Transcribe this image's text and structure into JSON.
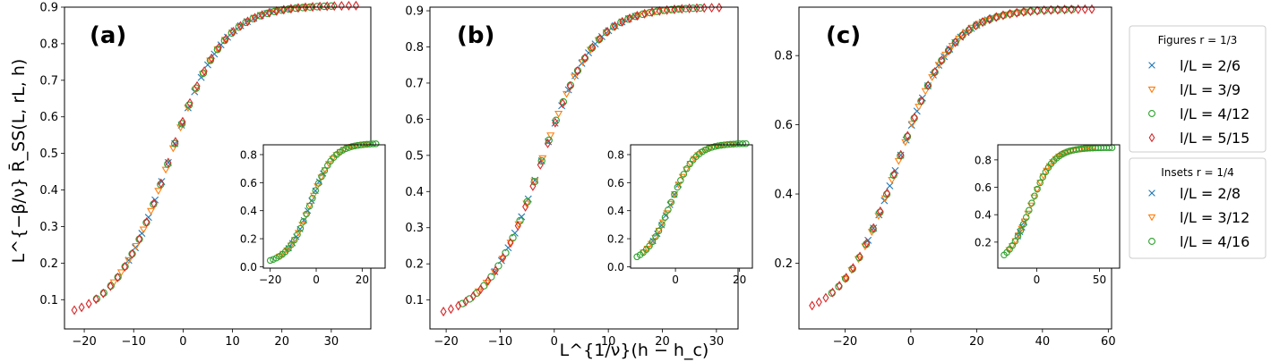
{
  "chart_data": {
    "type": "scatter",
    "shared_xlabel": "L^{1/ν}(h − h_c)",
    "shared_ylabel": "L^{−β/ν} R̄_SS(L, rL, h)",
    "legend": {
      "placement": "right",
      "groups": [
        {
          "title": "Figures r = 1/3",
          "entries": [
            {
              "label": "l/L = 2/6",
              "marker": "x",
              "color": "#1f77b4"
            },
            {
              "label": "l/L = 3/9",
              "marker": "triangle",
              "color": "#ff7f0e"
            },
            {
              "label": "l/L = 4/12",
              "marker": "circle",
              "color": "#2ca02c"
            },
            {
              "label": "l/L = 5/15",
              "marker": "diamond",
              "color": "#d62728"
            }
          ]
        },
        {
          "title": "Insets r = 1/4",
          "entries": [
            {
              "label": "l/L = 2/8",
              "marker": "x",
              "color": "#1f77b4"
            },
            {
              "label": "l/L = 3/12",
              "marker": "triangle",
              "color": "#ff7f0e"
            },
            {
              "label": "l/L = 4/16",
              "marker": "circle",
              "color": "#2ca02c"
            }
          ]
        }
      ]
    },
    "panels": [
      {
        "tag": "(a)",
        "xlim": [
          -24,
          38
        ],
        "ylim": [
          0.02,
          0.9
        ],
        "xticks": [
          -20,
          -10,
          0,
          10,
          20,
          30
        ],
        "yticks": [
          0.1,
          0.2,
          0.3,
          0.4,
          0.5,
          0.6,
          0.7,
          0.8,
          0.9
        ],
        "curve": {
          "x0": -3.0,
          "w": 5.5,
          "ymin": 0.045,
          "ymax": 0.905
        },
        "series": [
          {
            "name": "l/L = 2/6",
            "marker": "x",
            "color": "#1f77b4",
            "x_range": [
              -11,
              21
            ],
            "count": 25
          },
          {
            "name": "l/L = 3/9",
            "marker": "triangle",
            "color": "#ff7f0e",
            "x_range": [
              -14,
              25
            ],
            "count": 27
          },
          {
            "name": "l/L = 4/12",
            "marker": "circle",
            "color": "#2ca02c",
            "x_range": [
              -17.5,
              30
            ],
            "count": 34
          },
          {
            "name": "l/L = 5/15",
            "marker": "diamond",
            "color": "#d62728",
            "x_range": [
              -22,
              35
            ],
            "count": 40
          }
        ],
        "inset": {
          "xlim": [
            -23,
            30
          ],
          "ylim": [
            -0.01,
            0.87
          ],
          "xticks": [
            -20,
            0,
            20
          ],
          "yticks": [
            0.0,
            0.2,
            0.4,
            0.6,
            0.8
          ],
          "curve": {
            "x0": -2.5,
            "w": 5.0,
            "ymin": 0.02,
            "ymax": 0.88
          },
          "series": [
            {
              "name": "l/L = 2/8",
              "marker": "x",
              "color": "#1f77b4",
              "x_range": [
                -12,
                3
              ],
              "count": 10
            },
            {
              "name": "l/L = 3/12",
              "marker": "triangle",
              "color": "#ff7f0e",
              "x_range": [
                -16,
                22
              ],
              "count": 24
            },
            {
              "name": "l/L = 4/16",
              "marker": "circle",
              "color": "#2ca02c",
              "x_range": [
                -20,
                26
              ],
              "count": 36
            }
          ]
        }
      },
      {
        "tag": "(b)",
        "xlim": [
          -23,
          34
        ],
        "ylim": [
          0.02,
          0.91
        ],
        "xticks": [
          -20,
          -10,
          0,
          10,
          20,
          30
        ],
        "yticks": [
          0.1,
          0.2,
          0.3,
          0.4,
          0.5,
          0.6,
          0.7,
          0.8,
          0.9
        ],
        "curve": {
          "x0": -2.5,
          "w": 5.0,
          "ymin": 0.045,
          "ymax": 0.91
        },
        "series": [
          {
            "name": "l/L = 2/6",
            "marker": "x",
            "color": "#1f77b4",
            "x_range": [
              -11,
              15
            ],
            "count": 22
          },
          {
            "name": "l/L = 3/9",
            "marker": "triangle",
            "color": "#ff7f0e",
            "x_range": [
              -14,
              23
            ],
            "count": 26
          },
          {
            "name": "l/L = 4/12",
            "marker": "circle",
            "color": "#2ca02c",
            "x_range": [
              -17,
              27
            ],
            "count": 34
          },
          {
            "name": "l/L = 5/15",
            "marker": "diamond",
            "color": "#d62728",
            "x_range": [
              -20.5,
              30.5
            ],
            "count": 38
          }
        ],
        "inset": {
          "xlim": [
            -14,
            24
          ],
          "ylim": [
            -0.01,
            0.87
          ],
          "xticks": [
            0,
            20
          ],
          "yticks": [
            0.0,
            0.2,
            0.4,
            0.6,
            0.8
          ],
          "curve": {
            "x0": -1.5,
            "w": 3.8,
            "ymin": 0.02,
            "ymax": 0.88
          },
          "series": [
            {
              "name": "l/L = 2/8",
              "marker": "x",
              "color": "#1f77b4",
              "x_range": [
                -7,
                1
              ],
              "count": 7
            },
            {
              "name": "l/L = 3/12",
              "marker": "triangle",
              "color": "#ff7f0e",
              "x_range": [
                -10,
                18
              ],
              "count": 24
            },
            {
              "name": "l/L = 4/16",
              "marker": "circle",
              "color": "#2ca02c",
              "x_range": [
                -12,
                22
              ],
              "count": 36
            }
          ]
        }
      },
      {
        "tag": "(c)",
        "xlim": [
          -34,
          61
        ],
        "ylim": [
          0.01,
          0.94
        ],
        "xticks": [
          -20,
          0,
          20,
          40,
          60
        ],
        "yticks": [
          0.2,
          0.4,
          0.6,
          0.8
        ],
        "curve": {
          "x0": -4.0,
          "w": 8.3,
          "ymin": 0.04,
          "ymax": 0.935
        },
        "series": [
          {
            "name": "l/L = 2/6",
            "marker": "x",
            "color": "#1f77b4",
            "x_range": [
              -13,
              25
            ],
            "count": 24
          },
          {
            "name": "l/L = 3/9",
            "marker": "triangle",
            "color": "#ff7f0e",
            "x_range": [
              -20,
              35
            ],
            "count": 28
          },
          {
            "name": "l/L = 4/12",
            "marker": "circle",
            "color": "#2ca02c",
            "x_range": [
              -24,
              49
            ],
            "count": 36
          },
          {
            "name": "l/L = 5/15",
            "marker": "diamond",
            "color": "#d62728",
            "x_range": [
              -30,
              55
            ],
            "count": 42
          }
        ],
        "inset": {
          "xlim": [
            -31,
            66
          ],
          "ylim": [
            0.01,
            0.91
          ],
          "xticks": [
            0,
            50
          ],
          "yticks": [
            0.2,
            0.4,
            0.6,
            0.8
          ],
          "curve": {
            "x0": -5.0,
            "w": 9.0,
            "ymin": 0.03,
            "ymax": 0.89
          },
          "series": [
            {
              "name": "l/L = 2/8",
              "marker": "x",
              "color": "#1f77b4",
              "x_range": [
                -15,
                -10
              ],
              "count": 4
            },
            {
              "name": "l/L = 3/12",
              "marker": "triangle",
              "color": "#ff7f0e",
              "x_range": [
                -22,
                45
              ],
              "count": 28
            },
            {
              "name": "l/L = 4/16",
              "marker": "circle",
              "color": "#2ca02c",
              "x_range": [
                -26,
                60
              ],
              "count": 40
            }
          ]
        }
      }
    ]
  }
}
